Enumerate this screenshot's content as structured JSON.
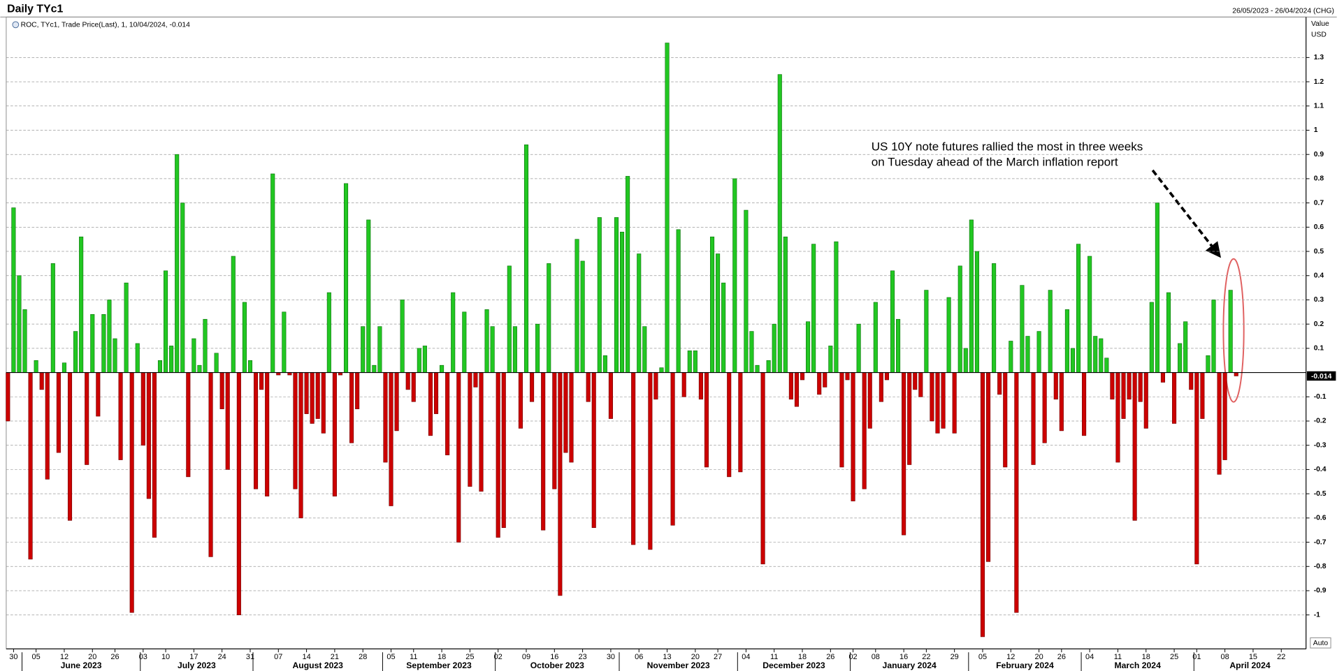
{
  "chart_data": {
    "type": "bar",
    "title": "Daily TYc1",
    "date_range": "26/05/2023 - 26/04/2024 (CHG)",
    "study_label": "ROC, TYc1, Trade Price(Last), 1, 10/04/2024, -0.014",
    "y_axis_label": "Value",
    "y_axis_unit": "USD",
    "scale_mode": "Auto",
    "annotation": [
      "US 10Y note futures rallied the most in three weeks",
      "on Tuesday ahead of the March inflation report"
    ],
    "positive_color": "#22c722",
    "negative_color": "#cc0000",
    "grid": true,
    "xlim": [
      "2023-05-26",
      "2024-04-26"
    ],
    "ylim": [
      -1.14,
      1.46
    ],
    "yticks": [
      -1,
      -0.9,
      -0.8,
      -0.7,
      -0.6,
      -0.5,
      -0.4,
      -0.3,
      -0.2,
      -0.1,
      0.1,
      0.2,
      0.3,
      0.4,
      0.5,
      0.6,
      0.7,
      0.8,
      0.9,
      1,
      1.1,
      1.2,
      1.3
    ],
    "xticks": [
      {
        "value": "2023-05-30",
        "label": "30"
      },
      {
        "value": "2023-06-05",
        "label": "05"
      },
      {
        "value": "2023-06-12",
        "label": "12"
      },
      {
        "value": "2023-06-20",
        "label": "20"
      },
      {
        "value": "2023-06-26",
        "label": "26"
      },
      {
        "value": "2023-07-03",
        "label": "03"
      },
      {
        "value": "2023-07-10",
        "label": "10"
      },
      {
        "value": "2023-07-17",
        "label": "17"
      },
      {
        "value": "2023-07-24",
        "label": "24"
      },
      {
        "value": "2023-07-31",
        "label": "31"
      },
      {
        "value": "2023-08-07",
        "label": "07"
      },
      {
        "value": "2023-08-14",
        "label": "14"
      },
      {
        "value": "2023-08-21",
        "label": "21"
      },
      {
        "value": "2023-08-28",
        "label": "28"
      },
      {
        "value": "2023-09-05",
        "label": "05"
      },
      {
        "value": "2023-09-11",
        "label": "11"
      },
      {
        "value": "2023-09-18",
        "label": "18"
      },
      {
        "value": "2023-09-25",
        "label": "25"
      },
      {
        "value": "2023-10-02",
        "label": "02"
      },
      {
        "value": "2023-10-09",
        "label": "09"
      },
      {
        "value": "2023-10-16",
        "label": "16"
      },
      {
        "value": "2023-10-23",
        "label": "23"
      },
      {
        "value": "2023-10-30",
        "label": "30"
      },
      {
        "value": "2023-11-06",
        "label": "06"
      },
      {
        "value": "2023-11-13",
        "label": "13"
      },
      {
        "value": "2023-11-20",
        "label": "20"
      },
      {
        "value": "2023-11-27",
        "label": "27"
      },
      {
        "value": "2023-12-04",
        "label": "04"
      },
      {
        "value": "2023-12-11",
        "label": "11"
      },
      {
        "value": "2023-12-18",
        "label": "18"
      },
      {
        "value": "2023-12-26",
        "label": "26"
      },
      {
        "value": "2024-01-02",
        "label": "02"
      },
      {
        "value": "2024-01-08",
        "label": "08"
      },
      {
        "value": "2024-01-16",
        "label": "16"
      },
      {
        "value": "2024-01-22",
        "label": "22"
      },
      {
        "value": "2024-01-29",
        "label": "29"
      },
      {
        "value": "2024-02-05",
        "label": "05"
      },
      {
        "value": "2024-02-12",
        "label": "12"
      },
      {
        "value": "2024-02-20",
        "label": "20"
      },
      {
        "value": "2024-02-26",
        "label": "26"
      },
      {
        "value": "2024-03-04",
        "label": "04"
      },
      {
        "value": "2024-03-11",
        "label": "11"
      },
      {
        "value": "2024-03-18",
        "label": "18"
      },
      {
        "value": "2024-03-25",
        "label": "25"
      },
      {
        "value": "2024-04-01",
        "label": "01"
      },
      {
        "value": "2024-04-08",
        "label": "08"
      },
      {
        "value": "2024-04-15",
        "label": "15"
      },
      {
        "value": "2024-04-22",
        "label": "22"
      }
    ],
    "month_labels": [
      {
        "value": "2023-06",
        "label": "June 2023"
      },
      {
        "value": "2023-07",
        "label": "July 2023"
      },
      {
        "value": "2023-08",
        "label": "August 2023"
      },
      {
        "value": "2023-09",
        "label": "September 2023"
      },
      {
        "value": "2023-10",
        "label": "October 2023"
      },
      {
        "value": "2023-11",
        "label": "November 2023"
      },
      {
        "value": "2023-12",
        "label": "December 2023"
      },
      {
        "value": "2024-01",
        "label": "January 2024"
      },
      {
        "value": "2024-02",
        "label": "February 2024"
      },
      {
        "value": "2024-03",
        "label": "March 2024"
      },
      {
        "value": "2024-04",
        "label": "April 2024"
      }
    ],
    "x": [
      "2023-05-26",
      "2023-05-30",
      "2023-05-31",
      "2023-06-01",
      "2023-06-02",
      "2023-06-05",
      "2023-06-06",
      "2023-06-07",
      "2023-06-08",
      "2023-06-09",
      "2023-06-12",
      "2023-06-13",
      "2023-06-14",
      "2023-06-15",
      "2023-06-16",
      "2023-06-20",
      "2023-06-21",
      "2023-06-22",
      "2023-06-23",
      "2023-06-26",
      "2023-06-27",
      "2023-06-28",
      "2023-06-29",
      "2023-06-30",
      "2023-07-03",
      "2023-07-05",
      "2023-07-06",
      "2023-07-07",
      "2023-07-10",
      "2023-07-11",
      "2023-07-12",
      "2023-07-13",
      "2023-07-14",
      "2023-07-17",
      "2023-07-18",
      "2023-07-19",
      "2023-07-20",
      "2023-07-21",
      "2023-07-24",
      "2023-07-25",
      "2023-07-26",
      "2023-07-27",
      "2023-07-28",
      "2023-07-31",
      "2023-08-01",
      "2023-08-02",
      "2023-08-03",
      "2023-08-04",
      "2023-08-07",
      "2023-08-08",
      "2023-08-09",
      "2023-08-10",
      "2023-08-11",
      "2023-08-14",
      "2023-08-15",
      "2023-08-16",
      "2023-08-17",
      "2023-08-18",
      "2023-08-21",
      "2023-08-22",
      "2023-08-23",
      "2023-08-24",
      "2023-08-25",
      "2023-08-28",
      "2023-08-29",
      "2023-08-30",
      "2023-08-31",
      "2023-09-01",
      "2023-09-05",
      "2023-09-06",
      "2023-09-07",
      "2023-09-08",
      "2023-09-11",
      "2023-09-12",
      "2023-09-13",
      "2023-09-14",
      "2023-09-15",
      "2023-09-18",
      "2023-09-19",
      "2023-09-20",
      "2023-09-21",
      "2023-09-22",
      "2023-09-25",
      "2023-09-26",
      "2023-09-27",
      "2023-09-28",
      "2023-09-29",
      "2023-10-02",
      "2023-10-03",
      "2023-10-04",
      "2023-10-05",
      "2023-10-06",
      "2023-10-09",
      "2023-10-10",
      "2023-10-11",
      "2023-10-12",
      "2023-10-13",
      "2023-10-16",
      "2023-10-17",
      "2023-10-18",
      "2023-10-19",
      "2023-10-20",
      "2023-10-23",
      "2023-10-24",
      "2023-10-25",
      "2023-10-26",
      "2023-10-27",
      "2023-10-30",
      "2023-10-31",
      "2023-11-01",
      "2023-11-02",
      "2023-11-03",
      "2023-11-06",
      "2023-11-07",
      "2023-11-08",
      "2023-11-09",
      "2023-11-10",
      "2023-11-13",
      "2023-11-14",
      "2023-11-15",
      "2023-11-16",
      "2023-11-17",
      "2023-11-20",
      "2023-11-21",
      "2023-11-22",
      "2023-11-24",
      "2023-11-27",
      "2023-11-28",
      "2023-11-29",
      "2023-11-30",
      "2023-12-01",
      "2023-12-04",
      "2023-12-05",
      "2023-12-06",
      "2023-12-07",
      "2023-12-08",
      "2023-12-11",
      "2023-12-12",
      "2023-12-13",
      "2023-12-14",
      "2023-12-15",
      "2023-12-18",
      "2023-12-19",
      "2023-12-20",
      "2023-12-21",
      "2023-12-22",
      "2023-12-26",
      "2023-12-27",
      "2023-12-28",
      "2023-12-29",
      "2024-01-02",
      "2024-01-03",
      "2024-01-04",
      "2024-01-05",
      "2024-01-08",
      "2024-01-09",
      "2024-01-10",
      "2024-01-11",
      "2024-01-12",
      "2024-01-16",
      "2024-01-17",
      "2024-01-18",
      "2024-01-19",
      "2024-01-22",
      "2024-01-23",
      "2024-01-24",
      "2024-01-25",
      "2024-01-26",
      "2024-01-29",
      "2024-01-30",
      "2024-01-31",
      "2024-02-01",
      "2024-02-02",
      "2024-02-05",
      "2024-02-06",
      "2024-02-07",
      "2024-02-08",
      "2024-02-09",
      "2024-02-12",
      "2024-02-13",
      "2024-02-14",
      "2024-02-15",
      "2024-02-16",
      "2024-02-20",
      "2024-02-21",
      "2024-02-22",
      "2024-02-23",
      "2024-02-26",
      "2024-02-27",
      "2024-02-28",
      "2024-02-29",
      "2024-03-01",
      "2024-03-04",
      "2024-03-05",
      "2024-03-06",
      "2024-03-07",
      "2024-03-08",
      "2024-03-11",
      "2024-03-12",
      "2024-03-13",
      "2024-03-14",
      "2024-03-15",
      "2024-03-18",
      "2024-03-19",
      "2024-03-20",
      "2024-03-21",
      "2024-03-22",
      "2024-03-25",
      "2024-03-26",
      "2024-03-27",
      "2024-03-28",
      "2024-04-01",
      "2024-04-02",
      "2024-04-03",
      "2024-04-04",
      "2024-04-05",
      "2024-04-08",
      "2024-04-09",
      "2024-04-10"
    ],
    "values": [
      -0.2,
      0.68,
      0.4,
      0.26,
      -0.77,
      0.05,
      -0.07,
      -0.44,
      0.45,
      -0.33,
      0.04,
      -0.61,
      0.17,
      0.56,
      -0.38,
      0.24,
      -0.18,
      0.24,
      0.3,
      0.14,
      -0.36,
      0.37,
      -0.99,
      0.12,
      -0.3,
      -0.52,
      -0.68,
      0.05,
      0.42,
      0.11,
      0.9,
      0.7,
      -0.43,
      0.14,
      0.03,
      0.22,
      -0.76,
      0.08,
      -0.15,
      -0.4,
      0.48,
      -1.0,
      0.29,
      0.05,
      -0.48,
      -0.07,
      -0.51,
      0.82,
      -0.01,
      0.25,
      -0.01,
      -0.48,
      -0.6,
      -0.17,
      -0.21,
      -0.19,
      -0.25,
      0.33,
      -0.51,
      -0.01,
      0.78,
      -0.29,
      -0.15,
      0.19,
      0.63,
      0.03,
      0.19,
      -0.37,
      -0.55,
      -0.24,
      0.3,
      -0.07,
      -0.12,
      0.1,
      0.11,
      -0.26,
      -0.17,
      0.03,
      -0.34,
      0.33,
      -0.7,
      0.25,
      -0.47,
      -0.06,
      -0.49,
      0.26,
      0.19,
      -0.68,
      -0.64,
      0.44,
      0.19,
      -0.23,
      0.94,
      -0.12,
      0.2,
      -0.65,
      0.45,
      -0.48,
      -0.92,
      -0.33,
      -0.37,
      0.55,
      0.46,
      -0.12,
      -0.64,
      0.64,
      0.07,
      -0.19,
      0.64,
      0.58,
      0.81,
      -0.71,
      0.49,
      0.19,
      -0.73,
      -0.11,
      0.02,
      1.36,
      -0.63,
      0.59,
      -0.1,
      0.09,
      0.09,
      -0.11,
      -0.39,
      0.56,
      0.49,
      0.37,
      -0.43,
      0.8,
      -0.41,
      0.67,
      0.17,
      0.03,
      -0.79,
      0.05,
      0.2,
      1.23,
      0.56,
      -0.11,
      -0.14,
      -0.03,
      0.21,
      0.53,
      -0.09,
      -0.06,
      0.11,
      0.54,
      -0.39,
      -0.03,
      -0.53,
      0.2,
      -0.48,
      -0.23,
      0.29,
      -0.12,
      -0.03,
      0.42,
      0.22,
      -0.67,
      -0.38,
      -0.07,
      -0.1,
      0.34,
      -0.2,
      -0.25,
      -0.23,
      0.31,
      -0.25,
      0.44,
      0.1,
      0.63,
      0.5,
      -1.09,
      -0.78,
      0.45,
      -0.09,
      -0.39,
      0.13,
      -0.99,
      0.36,
      0.15,
      -0.38,
      0.17,
      -0.29,
      0.34,
      -0.11,
      -0.24,
      0.26,
      0.1,
      0.53,
      -0.26,
      0.48,
      0.15,
      0.14,
      0.06,
      -0.11,
      -0.37,
      -0.19,
      -0.11,
      -0.61,
      -0.12,
      -0.23,
      0.29,
      0.7,
      -0.04,
      0.33,
      -0.21,
      0.12,
      0.21,
      -0.07,
      -0.79,
      -0.19,
      0.07,
      0.3,
      -0.42,
      -0.36,
      0.34,
      -0.014
    ]
  }
}
